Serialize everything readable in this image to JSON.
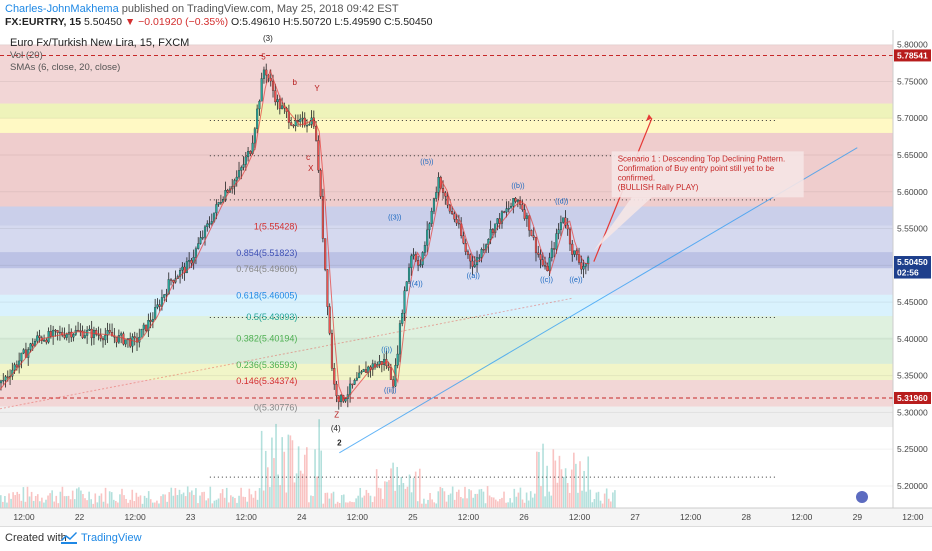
{
  "header": {
    "author": "Charles-JohnMakhema",
    "published_text": "published on TradingView.com, May 25, 2018 09:42 EST",
    "symbol_line": {
      "symbol": "FX:EURTRY, 15",
      "last": "5.50450",
      "change": "▼ −0.01920 (−0.35%)",
      "ohlc": "O:5.49610 H:5.50720 L:5.49590 C:5.50450"
    }
  },
  "legend": {
    "title": "Euro Fx/Turkish New Lira, 15, FXCM",
    "vol": "Vol (20)",
    "smas": "SMAs (6, close, 20, close)"
  },
  "footer": {
    "created_with": "Created with",
    "brand": "TradingView"
  },
  "annotation": {
    "lines": [
      "Scenario 1  : Descending Top Declining Pattern.",
      "Confirmation of Buy entry point still yet to be",
      "confirmed.",
      "(BULLISH Rally PLAY)"
    ]
  },
  "colors": {
    "up": "#26a69a",
    "down": "#ef5350",
    "fib_red": "#d32f2f",
    "fib_blue": "#3f51b5",
    "fib_green": "#4caf50",
    "price_tag": "#1e3f8c",
    "level_tag": "#b71c1c"
  },
  "chart_data": {
    "type": "candlestick",
    "y_axis": {
      "range": [
        5.17,
        5.82
      ],
      "ticks": [
        "5.80000",
        "5.75000",
        "5.70000",
        "5.65000",
        "5.60000",
        "5.55000",
        "5.50000",
        "5.45000",
        "5.40000",
        "5.35000",
        "5.30000",
        "5.25000",
        "5.20000"
      ]
    },
    "x_axis": {
      "ticks": [
        "12:00",
        "22",
        "12:00",
        "23",
        "12:00",
        "24",
        "12:00",
        "25",
        "12:00",
        "26",
        "12:00",
        "27",
        "12:00",
        "28",
        "12:00",
        "29",
        "12:00"
      ]
    },
    "price_tags": [
      {
        "label": "5.78541",
        "value": 5.78541
      },
      {
        "label": "5.50450",
        "value": 5.5045
      },
      {
        "label": "02:56",
        "value": 5.4902
      },
      {
        "label": "5.31960",
        "value": 5.3196
      }
    ],
    "fib_levels": [
      {
        "label": "1(5.55428)",
        "value": 5.55428
      },
      {
        "label": "0.854(5.51823)",
        "value": 5.51823
      },
      {
        "label": "0.764(5.49606)",
        "value": 5.49606
      },
      {
        "label": "0.618(5.46005)",
        "value": 5.46005
      },
      {
        "label": "0.5(5.43093)",
        "value": 5.43093
      },
      {
        "label": "0.382(5.40194)",
        "value": 5.40194
      },
      {
        "label": "0.236(5.36593)",
        "value": 5.36593
      },
      {
        "label": "0.146(5.34374)",
        "value": 5.34374
      },
      {
        "label": "0(5.30776)",
        "value": 5.30776
      }
    ],
    "wave_labels": [
      {
        "text": "(3)",
        "x": 0.3,
        "y": 5.805
      },
      {
        "text": "5",
        "x": 0.295,
        "y": 5.78
      },
      {
        "text": "b",
        "x": 0.33,
        "y": 5.745
      },
      {
        "text": "Y",
        "x": 0.355,
        "y": 5.737
      },
      {
        "text": "c",
        "x": 0.345,
        "y": 5.643
      },
      {
        "text": "X",
        "x": 0.348,
        "y": 5.628
      },
      {
        "text": "Z",
        "x": 0.377,
        "y": 5.293
      },
      {
        "text": "(4)",
        "x": 0.376,
        "y": 5.275
      },
      {
        "text": "2",
        "x": 0.38,
        "y": 5.255
      },
      {
        "text": "((i))",
        "x": 0.433,
        "y": 5.382
      },
      {
        "text": "((ii))",
        "x": 0.437,
        "y": 5.327
      },
      {
        "text": "((3))",
        "x": 0.442,
        "y": 5.562
      },
      {
        "text": "((4))",
        "x": 0.466,
        "y": 5.472
      },
      {
        "text": "((5))",
        "x": 0.478,
        "y": 5.638
      },
      {
        "text": "((a))",
        "x": 0.53,
        "y": 5.483
      },
      {
        "text": "((b))",
        "x": 0.58,
        "y": 5.605
      },
      {
        "text": "((c))",
        "x": 0.612,
        "y": 5.477
      },
      {
        "text": "((d))",
        "x": 0.629,
        "y": 5.584
      },
      {
        "text": "((e))",
        "x": 0.645,
        "y": 5.477
      }
    ],
    "dotted_lines": [
      5.697,
      5.649,
      5.589,
      5.429,
      5.212
    ],
    "dashed_red_lines": [
      5.7854,
      5.3196
    ]
  }
}
